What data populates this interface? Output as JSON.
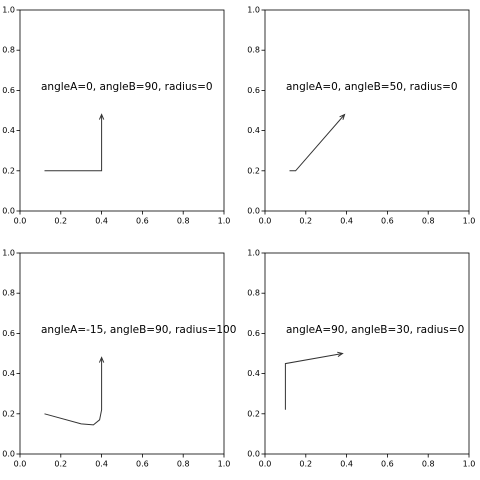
{
  "chart_data": [
    {
      "type": "line",
      "annotation": "angleA=0, angleB=90, radius=0",
      "x": [
        0.12,
        0.4,
        0.4
      ],
      "y": [
        0.2,
        0.2,
        0.48
      ],
      "color": "#333333",
      "xlim": [
        0,
        1
      ],
      "ylim": [
        0,
        1
      ],
      "xticks": [
        {
          "value": 0,
          "label": "0.0"
        },
        0.2,
        0.4,
        0.6,
        0.8,
        {
          "value": 1,
          "label": "1.0"
        }
      ],
      "yticks": [
        {
          "value": 0,
          "label": "0.0"
        },
        0.2,
        0.4,
        0.6,
        0.8,
        {
          "value": 1,
          "label": "1.0"
        }
      ]
    },
    {
      "type": "line",
      "annotation": "angleA=0, angleB=50, radius=0",
      "x": [
        0.12,
        0.15,
        0.39
      ],
      "y": [
        0.2,
        0.2,
        0.48
      ],
      "color": "#333333",
      "xlim": [
        0,
        1
      ],
      "ylim": [
        0,
        1
      ],
      "xticks": [
        {
          "value": 0,
          "label": "0.0"
        },
        0.2,
        0.4,
        0.6,
        0.8,
        {
          "value": 1,
          "label": "1.0"
        }
      ],
      "yticks": [
        {
          "value": 0,
          "label": "0.0"
        },
        0.2,
        0.4,
        0.6,
        0.8,
        {
          "value": 1,
          "label": "1.0"
        }
      ]
    },
    {
      "type": "line",
      "annotation": "angleA=-15, angleB=90, radius=100",
      "x": [
        0.12,
        0.3,
        0.36,
        0.39,
        0.4,
        0.4
      ],
      "y": [
        0.2,
        0.15,
        0.145,
        0.17,
        0.22,
        0.48
      ],
      "color": "#333333",
      "xlim": [
        0,
        1
      ],
      "ylim": [
        0,
        1
      ],
      "xticks": [
        {
          "value": 0,
          "label": "0.0"
        },
        0.2,
        0.4,
        0.6,
        0.8,
        {
          "value": 1,
          "label": "1.0"
        }
      ],
      "yticks": [
        {
          "value": 0,
          "label": "0.0"
        },
        0.2,
        0.4,
        0.6,
        0.8,
        {
          "value": 1,
          "label": "1.0"
        }
      ]
    },
    {
      "type": "line",
      "annotation": "angleA=90, angleB=30, radius=0",
      "x": [
        0.1,
        0.1,
        0.38
      ],
      "y": [
        0.22,
        0.45,
        0.5
      ],
      "color": "#333333",
      "xlim": [
        0,
        1
      ],
      "ylim": [
        0,
        1
      ],
      "xticks": [
        {
          "value": 0,
          "label": "0.0"
        },
        0.2,
        0.4,
        0.6,
        0.8,
        {
          "value": 1,
          "label": "1.0"
        }
      ],
      "yticks": [
        {
          "value": 0,
          "label": "0.0"
        },
        0.2,
        0.4,
        0.6,
        0.8,
        {
          "value": 1,
          "label": "1.0"
        }
      ]
    }
  ]
}
